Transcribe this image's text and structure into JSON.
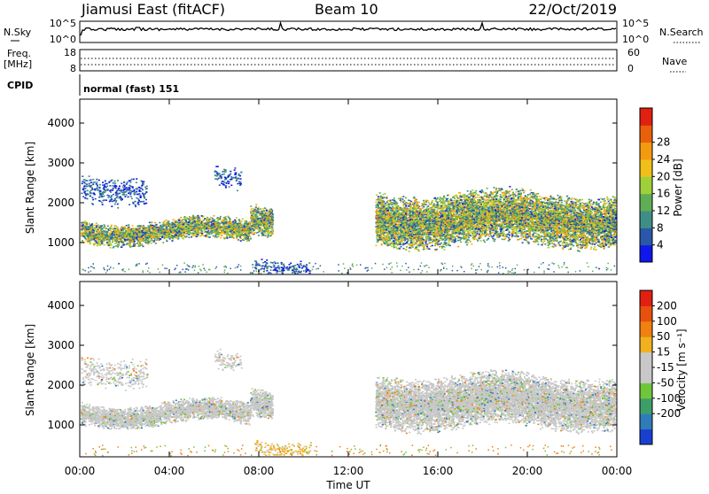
{
  "header": {
    "station": "Jiamusi East (fitACF)",
    "beam": "Beam 10",
    "date": "22/Oct/2019"
  },
  "noise_panel": {
    "left_label": "N.Sky",
    "right_label": "N.Search",
    "ticks_left": [
      "10^5",
      "10^0"
    ],
    "ticks_right": [
      "10^5",
      "10^0"
    ]
  },
  "freq_panel": {
    "left_label_1": "Freq.",
    "left_label_2": "[MHz]",
    "ticks_left": [
      "18",
      "8"
    ],
    "right_label": "Nave",
    "ticks_right": [
      "60",
      "0"
    ]
  },
  "cpid": {
    "label": "CPID",
    "mode": "normal (fast) 151"
  },
  "chart_data": [
    {
      "type": "heatmap",
      "name": "power",
      "ylabel": "Slant Range [km]",
      "yticks": [
        1000,
        2000,
        3000,
        4000
      ],
      "ylim": [
        200,
        4600
      ],
      "xlim": [
        0,
        24
      ],
      "colorbar_label": "Power [dB]",
      "colorbar_ticks": [
        "4",
        "8",
        "12",
        "16",
        "20",
        "24",
        "28"
      ],
      "colorbar_colors": [
        "#0f17ea",
        "#2a58a8",
        "#3f8e86",
        "#5fae55",
        "#9ed03a",
        "#f0c018",
        "#f59a10",
        "#e8600c",
        "#e02010"
      ],
      "echo_bands": [
        {
          "t0": 0,
          "t1": 7.6,
          "r0": 1000,
          "r1": 1600,
          "level": 0.55
        },
        {
          "t0": 7.6,
          "t1": 8.6,
          "r0": 1200,
          "r1": 2000,
          "level": 0.6
        },
        {
          "t0": 13.2,
          "t1": 24,
          "r0": 900,
          "r1": 2300,
          "level": 0.45
        },
        {
          "t0": 6.0,
          "t1": 7.2,
          "r0": 2400,
          "r1": 3000,
          "level": 0.25
        },
        {
          "t0": 0,
          "t1": 3.0,
          "r0": 2000,
          "r1": 2800,
          "level": 0.2
        },
        {
          "t0": 7.8,
          "t1": 10.3,
          "r0": 250,
          "r1": 700,
          "level": 0.35
        }
      ]
    },
    {
      "type": "heatmap",
      "name": "velocity",
      "ylabel": "Slant Range [km]",
      "yticks": [
        1000,
        2000,
        3000,
        4000
      ],
      "ylim": [
        200,
        4600
      ],
      "xlim": [
        0,
        24
      ],
      "xticks": [
        "00:00",
        "04:00",
        "08:00",
        "12:00",
        "16:00",
        "20:00",
        "00:00"
      ],
      "xlabel": "Time UT",
      "colorbar_label": "Velocity [m s⁻¹]",
      "colorbar_ticks": [
        "200",
        "100",
        "50",
        "15",
        "-15",
        "-50",
        "-100",
        "-200"
      ],
      "colorbar_colors": [
        "#1a3fd0",
        "#2e7cb8",
        "#3d9e6a",
        "#70c63a",
        "#c8c8c8",
        "#c8c8c8",
        "#f0b020",
        "#f08010",
        "#e85010",
        "#e02010"
      ]
    }
  ],
  "colors": {
    "frame": "#000000",
    "gray_echo": "#c8c8c8"
  }
}
